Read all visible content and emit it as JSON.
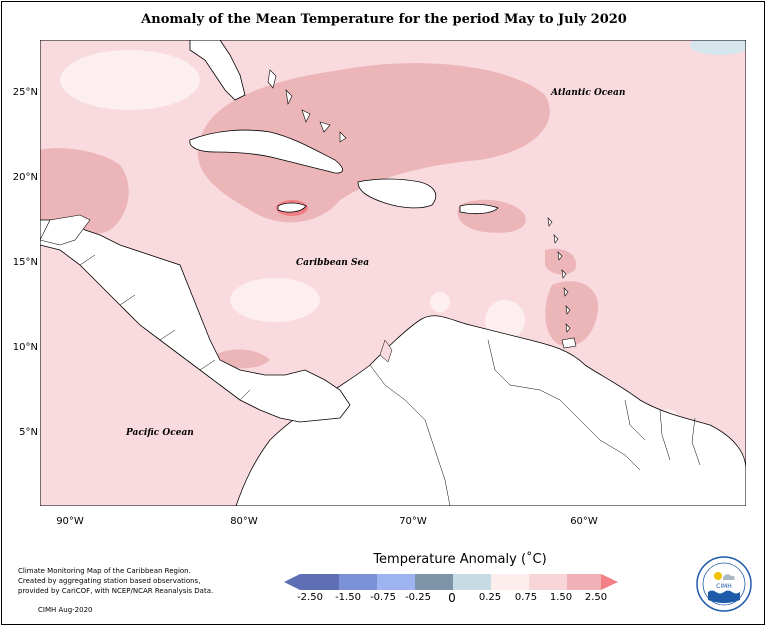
{
  "title": "Anomaly of the Mean Temperature for the period May to July 2020",
  "map": {
    "latitude_labels": [
      "25°N",
      "20°N",
      "15°N",
      "10°N",
      "5°N"
    ],
    "longitude_labels": [
      "90°W",
      "80°W",
      "70°W",
      "60°W"
    ],
    "regions": {
      "atlantic": "Atlantic Ocean",
      "caribbean": "Caribbean Sea",
      "pacific": "Pacific Ocean"
    },
    "colors": {
      "base_anomaly": "#f9dade",
      "moderate_anomaly": "#ecb5b8",
      "high_anomaly": "#f27f86",
      "near_zero": "#fdeff0",
      "negative_light": "#d6e6ee",
      "negative_mid": "#6f98b8",
      "land": "#ffffff",
      "coast": "#000000"
    }
  },
  "legend": {
    "title": "Temperature Anomaly (˚C)",
    "ticks": [
      "-2.50",
      "-1.50",
      "-0.75",
      "-0.25",
      "0",
      "0.25",
      "0.75",
      "1.50",
      "2.50"
    ],
    "colors": [
      "#5e6fb5",
      "#7c92d8",
      "#9db4f0",
      "#7d93a8",
      "#c6dbe3",
      "#fdeeee",
      "#f7d5d8",
      "#f0b2b6",
      "#f47f85"
    ]
  },
  "credits": {
    "lines": [
      "Climate Monitoring Map of the Caribbean Region.",
      "Created by aggregating station based observations,",
      "provided by CariCOF, with NCEP/NCAR Reanalysis Data."
    ],
    "date": "CIMH Aug-2020"
  },
  "logo": {
    "label": "CIMH",
    "icon": "cimh-logo"
  }
}
